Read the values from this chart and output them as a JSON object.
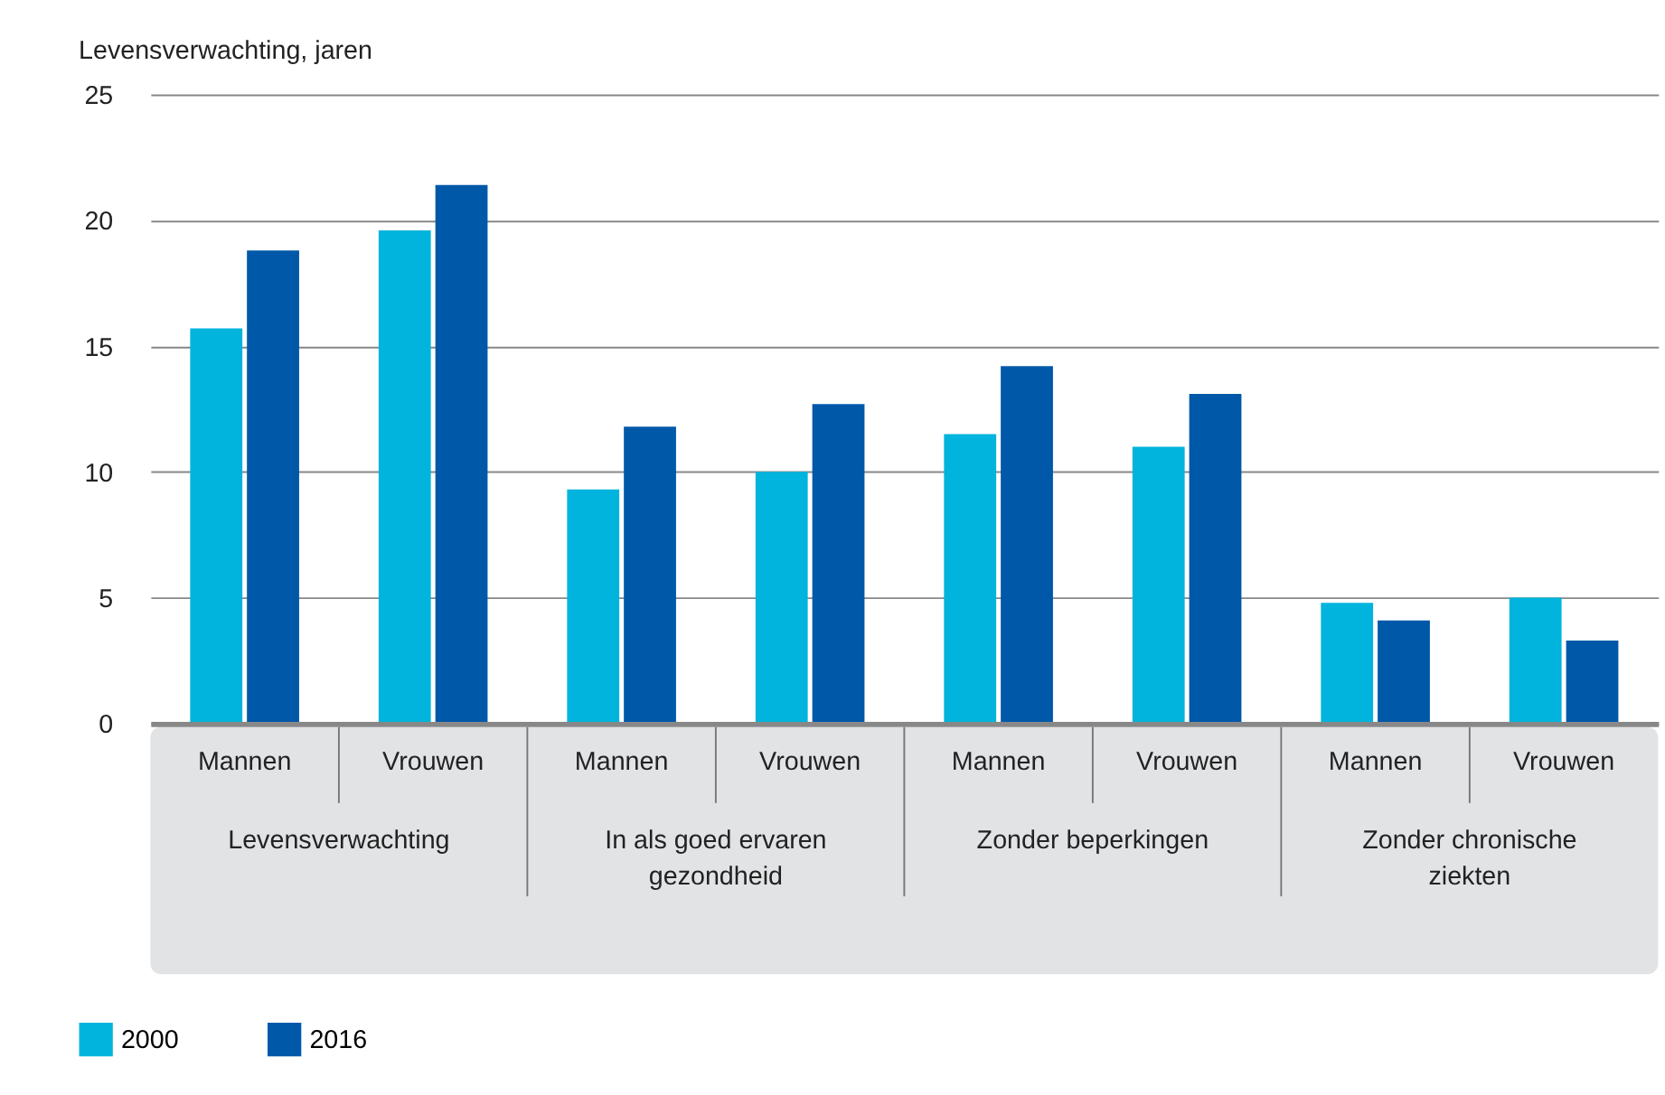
{
  "chart_data": {
    "type": "bar",
    "ylabel": "Levensverwachting, jaren",
    "categories": [
      "Mannen",
      "Vrouwen",
      "Mannen",
      "Vrouwen",
      "Mannen",
      "Vrouwen",
      "Mannen",
      "Vrouwen"
    ],
    "annotations": [
      "Levensverwachting",
      "In als goed ervaren gezondheid",
      "Zonder beperkingen",
      "Zonder chronische ziekten"
    ],
    "series": [
      {
        "name": "2000",
        "color": "#00b4dd",
        "values": [
          15.7,
          19.6,
          9.3,
          10.0,
          11.5,
          11.0,
          4.8,
          5.0
        ]
      },
      {
        "name": "2016",
        "color": "#0058a8",
        "values": [
          18.8,
          21.4,
          11.8,
          12.7,
          14.2,
          13.1,
          4.1,
          3.3
        ]
      }
    ],
    "ylim": [
      0,
      25
    ],
    "yticks": [
      0,
      5,
      10,
      15,
      20,
      25
    ],
    "grid": "y",
    "legend": "bottom left"
  }
}
